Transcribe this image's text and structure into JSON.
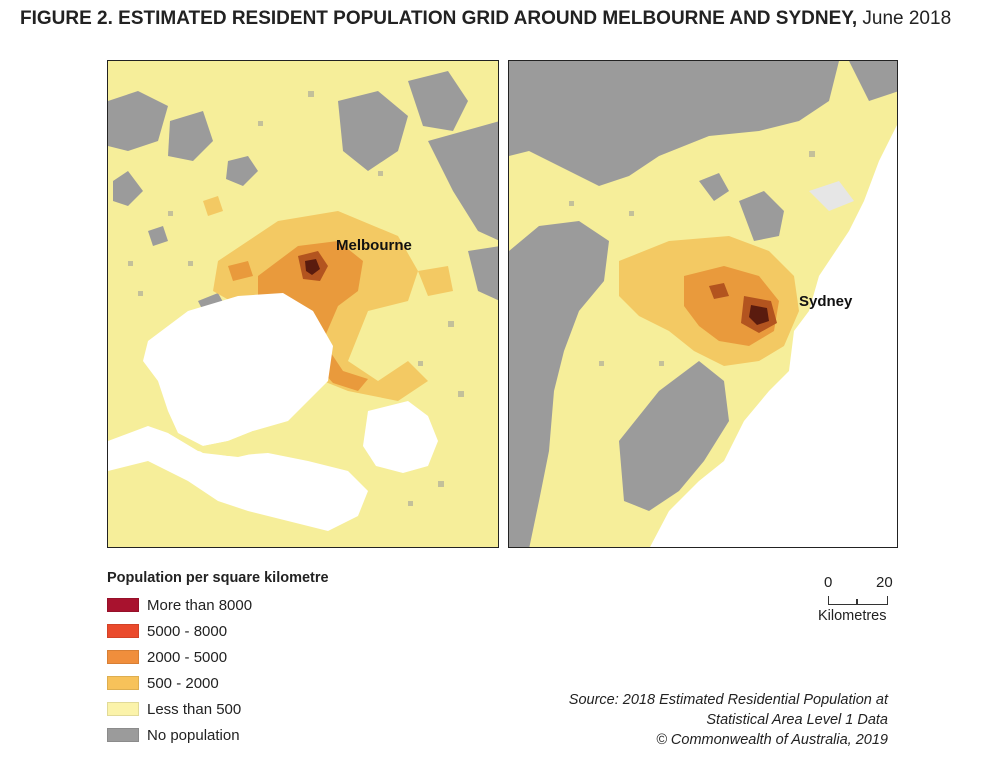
{
  "title": {
    "bold": "FIGURE 2. ESTIMATED RESIDENT POPULATION GRID AROUND MELBOURNE AND SYDNEY,",
    "light": "June 2018"
  },
  "maps": {
    "melbourne": {
      "label": "Melbourne"
    },
    "sydney": {
      "label": "Sydney"
    }
  },
  "legend": {
    "title": "Population per square kilometre",
    "items": [
      {
        "label": "More than 8000",
        "color": "#a8122e"
      },
      {
        "label": "5000 - 8000",
        "color": "#ea4a2c"
      },
      {
        "label": "2000 - 5000",
        "color": "#f08e3c"
      },
      {
        "label": "500 - 2000",
        "color": "#f7c25a"
      },
      {
        "label": "Less than 500",
        "color": "#fbf3aa"
      },
      {
        "label": "No population",
        "color": "#9b9b9b"
      }
    ]
  },
  "scale_bar": {
    "start": "0",
    "end": "20",
    "unit": "Kilometres"
  },
  "source": {
    "line1": "Source: 2018 Estimated Residential Population at",
    "line2": "Statistical Area Level 1 Data",
    "line3": "© Commonwealth of Australia, 2019"
  },
  "colors": {
    "water": "#ffffff",
    "no_population": "#9b9b9b",
    "low": "#f6ee9a",
    "mid": "#f3c963",
    "high": "#e99a3c",
    "very_high": "#b3541f",
    "extreme": "#5a1b0e"
  }
}
